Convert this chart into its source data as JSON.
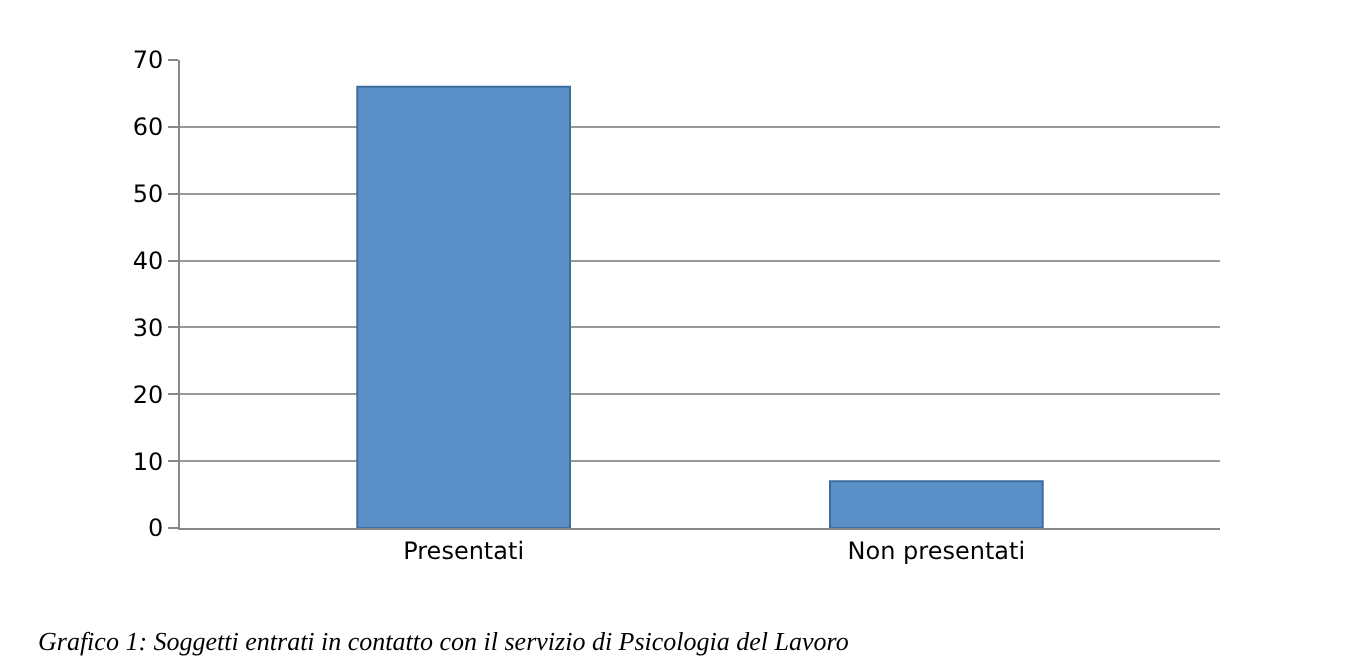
{
  "chart_data": {
    "type": "bar",
    "categories": [
      "Presentati",
      "Non presentati"
    ],
    "values": [
      66,
      7
    ],
    "color": "#5a8fc8",
    "ylim": [
      0,
      70
    ],
    "yticks": [
      0,
      10,
      20,
      30,
      40,
      50,
      60,
      70
    ],
    "grid": "y",
    "annotations": [
      "Grafico 1: Soggetti entrati in contatto con il servizio di Psicologia del Lavoro"
    ]
  }
}
